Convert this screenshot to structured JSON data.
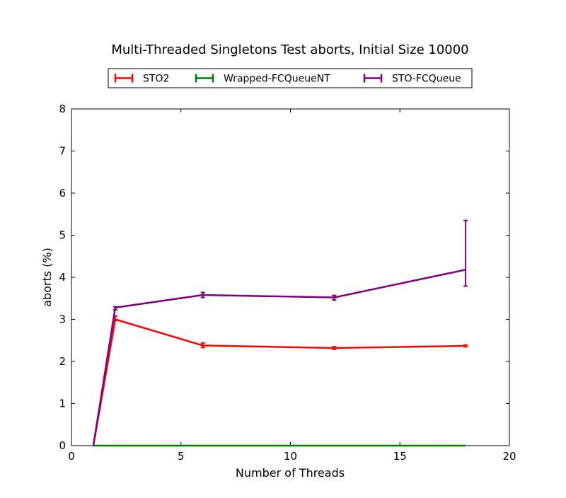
{
  "chart_data": {
    "type": "line",
    "title": "Multi-Threaded Singletons Test aborts, Initial Size 10000",
    "xlabel": "Number of Threads",
    "ylabel": "aborts (%)",
    "xlim": [
      0,
      20
    ],
    "ylim": [
      0,
      8
    ],
    "x_ticks": [
      0,
      5,
      10,
      15,
      20
    ],
    "y_ticks": [
      0,
      1,
      2,
      3,
      4,
      5,
      6,
      7,
      8
    ],
    "grid": false,
    "legend_position": "top-center",
    "series": [
      {
        "name": "STO2",
        "color": "#ff0000",
        "x": [
          1,
          2,
          6,
          12,
          18
        ],
        "y": [
          0,
          3.0,
          2.38,
          2.32,
          2.37
        ],
        "err_low": [
          0,
          2.97,
          2.33,
          2.29,
          2.35
        ],
        "err_high": [
          0,
          3.08,
          2.44,
          2.35,
          2.39
        ]
      },
      {
        "name": "Wrapped-FCQueueNT",
        "color": "#008000",
        "x": [
          1,
          2,
          6,
          12,
          18
        ],
        "y": [
          0,
          0,
          0,
          0,
          0
        ],
        "err_low": [
          0,
          0,
          0,
          0,
          0
        ],
        "err_high": [
          0,
          0,
          0,
          0,
          0
        ]
      },
      {
        "name": "STO-FCQueue",
        "color": "#800080",
        "x": [
          1,
          2,
          6,
          12,
          18
        ],
        "y": [
          0,
          3.28,
          3.58,
          3.52,
          4.18
        ],
        "err_low": [
          0,
          3.23,
          3.52,
          3.46,
          3.79
        ],
        "err_high": [
          0,
          3.3,
          3.64,
          3.57,
          5.35
        ]
      }
    ]
  }
}
